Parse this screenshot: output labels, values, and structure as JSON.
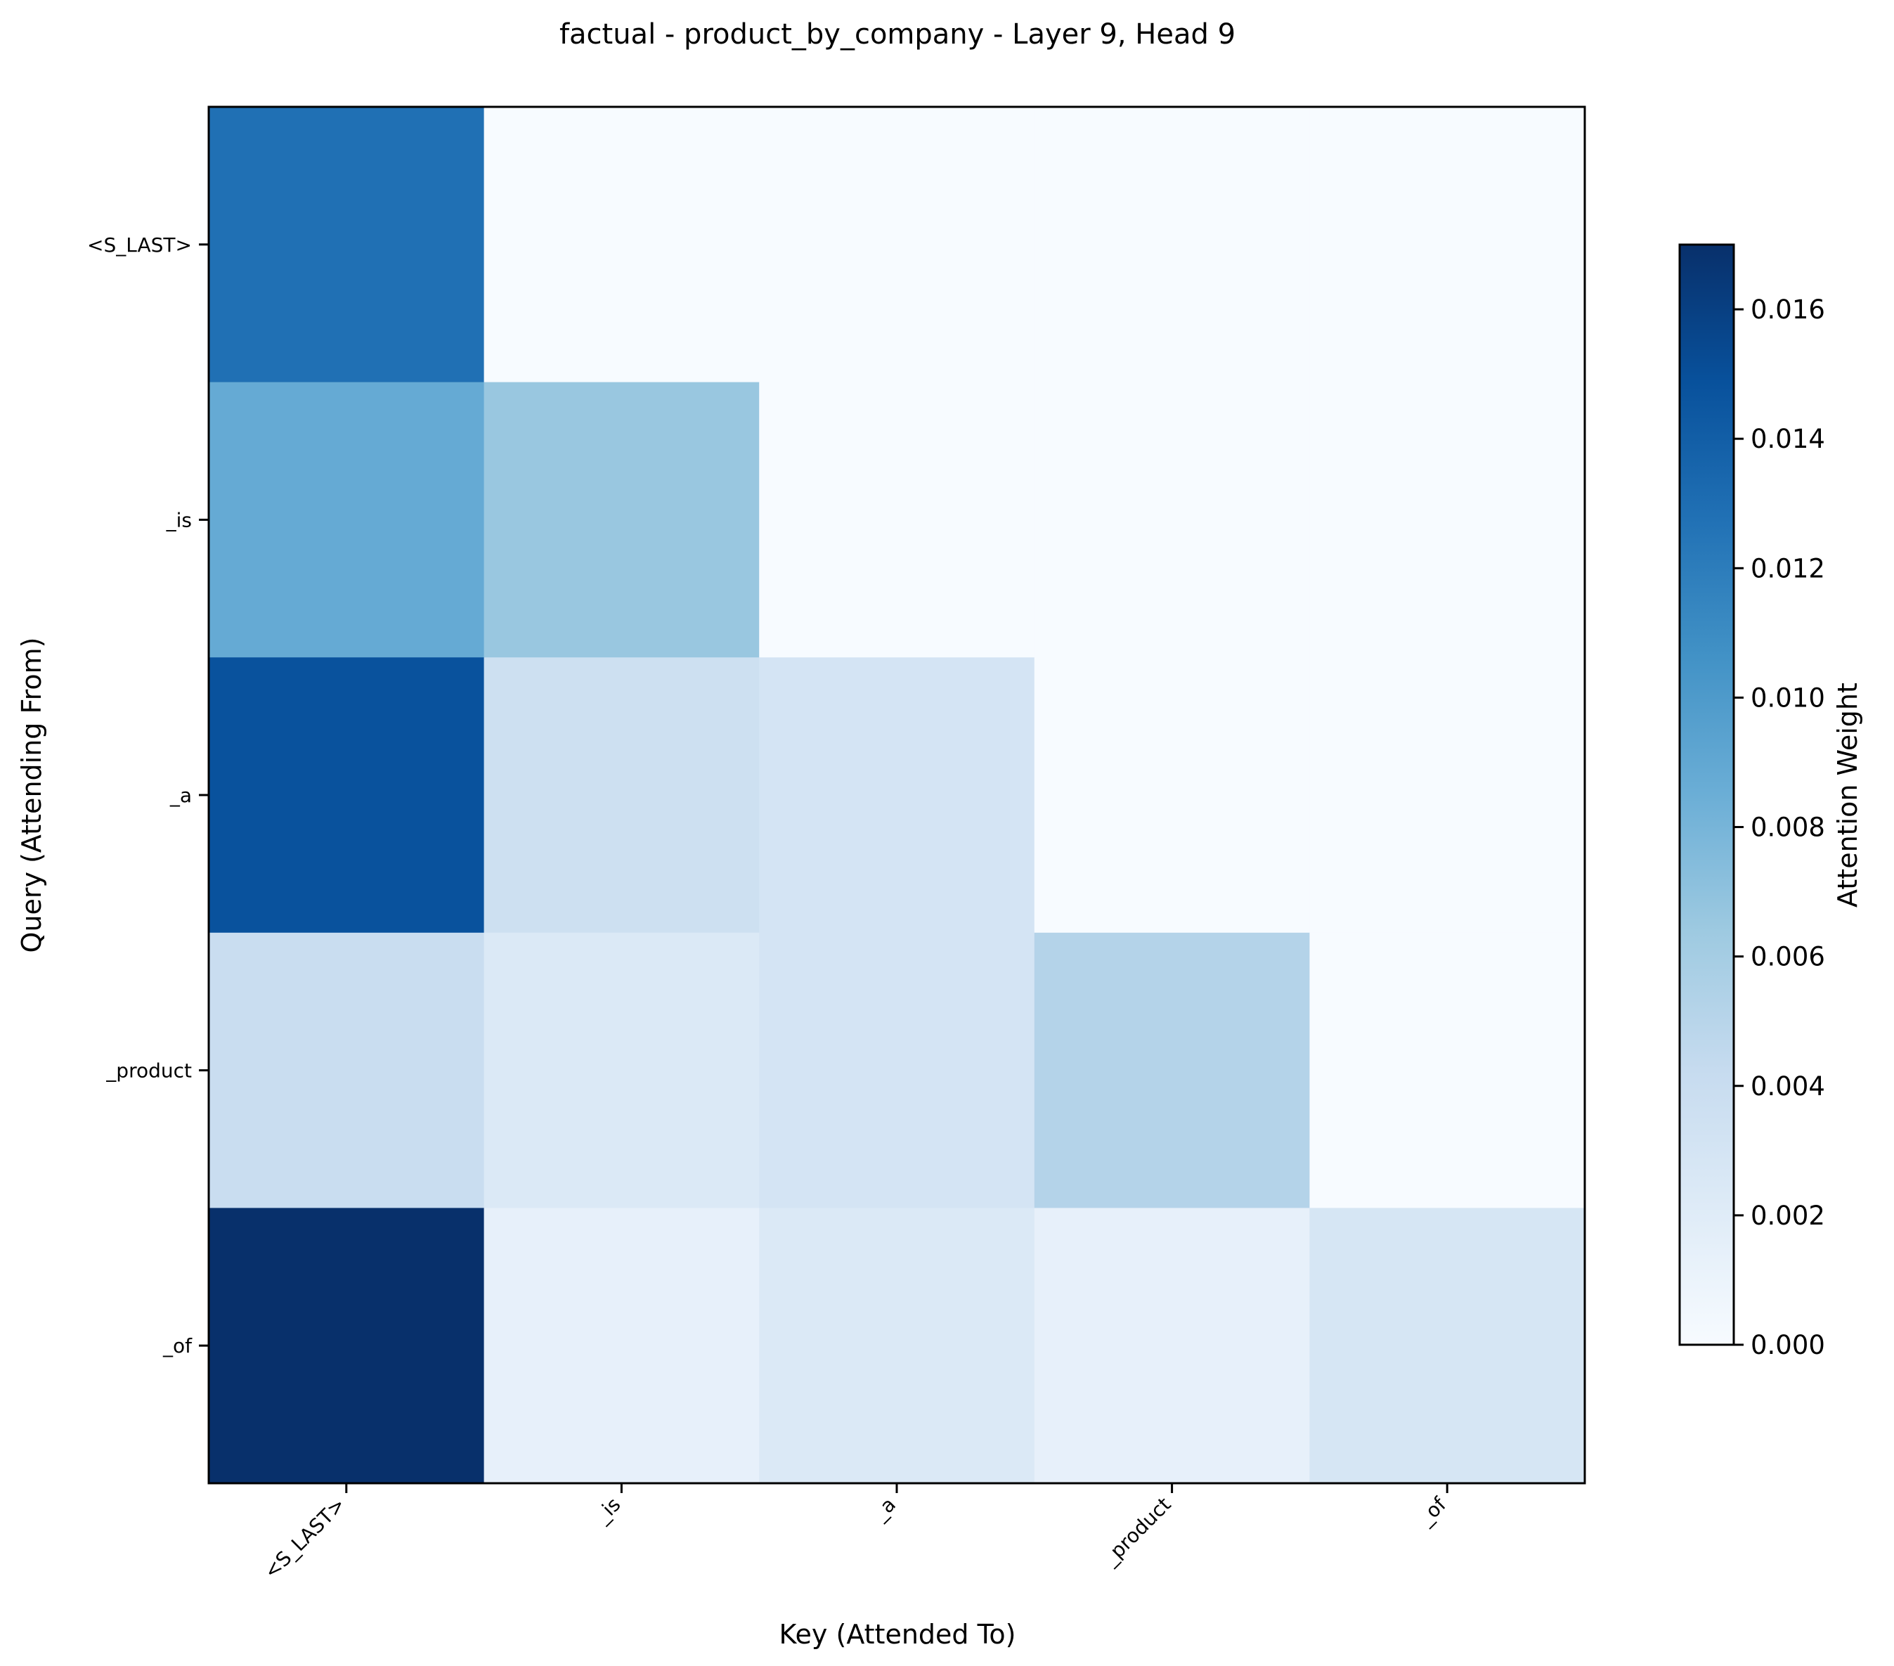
{
  "chart_data": {
    "type": "heatmap",
    "title": "factual - product_by_company - Layer 9, Head 9",
    "xlabel": "Key (Attended To)",
    "ylabel": "Query (Attending From)",
    "x_categories": [
      "<S_LAST>",
      "_is",
      "_a",
      "_product",
      "_of"
    ],
    "y_categories": [
      "<S_LAST>",
      "_is",
      "_a",
      "_product",
      "_of"
    ],
    "values": [
      [
        0.0128,
        0.0,
        0.0,
        0.0,
        0.0
      ],
      [
        0.0088,
        0.0066,
        0.0,
        0.0,
        0.0
      ],
      [
        0.0148,
        0.0036,
        0.003,
        0.0,
        0.0
      ],
      [
        0.004,
        0.0024,
        0.003,
        0.0052,
        0.0
      ],
      [
        0.017,
        0.0014,
        0.0024,
        0.0014,
        0.0028
      ]
    ],
    "colorbar": {
      "label": "Attention Weight",
      "range": [
        0.0,
        0.017
      ],
      "ticks": [
        "0.000",
        "0.002",
        "0.004",
        "0.006",
        "0.008",
        "0.010",
        "0.012",
        "0.014",
        "0.016"
      ],
      "colormap": "Blues"
    },
    "grid": false
  }
}
